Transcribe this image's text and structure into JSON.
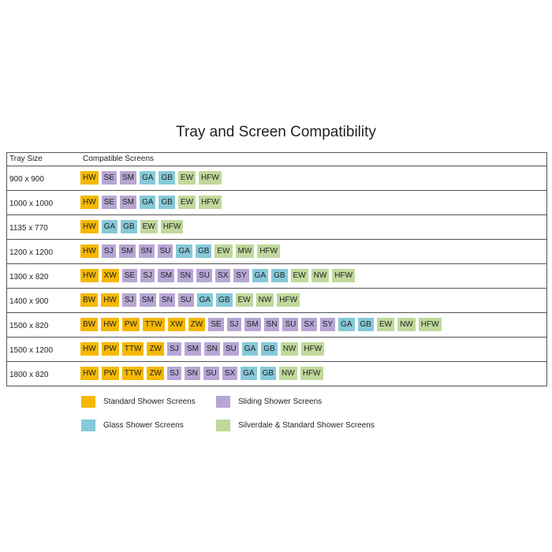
{
  "title": "Tray and Screen Compatibility",
  "headers": {
    "tray_size": "Tray Size",
    "compatible": "Compatible Screens"
  },
  "colors": {
    "standard": "#f5b800",
    "sliding": "#b6a6d4",
    "glass": "#86c9d9",
    "silverdale": "#bfd99b"
  },
  "codes": {
    "HW": "standard",
    "XW": "standard",
    "BW": "standard",
    "PW": "standard",
    "TTW": "standard",
    "ZW": "standard",
    "SE": "sliding",
    "SM": "sliding",
    "SJ": "sliding",
    "SN": "sliding",
    "SU": "sliding",
    "SX": "sliding",
    "SY": "sliding",
    "GA": "glass",
    "GB": "glass",
    "EW": "silverdale",
    "HFW": "silverdale",
    "MW": "silverdale",
    "NW": "silverdale"
  },
  "rows": [
    {
      "size": "900 x 900",
      "screens": [
        "HW",
        "SE",
        "SM",
        "GA",
        "GB",
        "EW",
        "HFW"
      ]
    },
    {
      "size": "1000 x 1000",
      "screens": [
        "HW",
        "SE",
        "SM",
        "GA",
        "GB",
        "EW",
        "HFW"
      ]
    },
    {
      "size": "1135 x 770",
      "screens": [
        "HW",
        "GA",
        "GB",
        "EW",
        "HFW"
      ]
    },
    {
      "size": "1200 x 1200",
      "screens": [
        "HW",
        "SJ",
        "SM",
        "SN",
        "SU",
        "GA",
        "GB",
        "EW",
        "MW",
        "HFW"
      ]
    },
    {
      "size": "1300 x 820",
      "screens": [
        "HW",
        "XW",
        "SE",
        "SJ",
        "SM",
        "SN",
        "SU",
        "SX",
        "SY",
        "GA",
        "GB",
        "EW",
        "NW",
        "HFW"
      ]
    },
    {
      "size": "1400 x 900",
      "screens": [
        "BW",
        "HW",
        "SJ",
        "SM",
        "SN",
        "SU",
        "GA",
        "GB",
        "EW",
        "NW",
        "HFW"
      ]
    },
    {
      "size": "1500 x 820",
      "screens": [
        "BW",
        "HW",
        "PW",
        "TTW",
        "XW",
        "ZW",
        "SE",
        "SJ",
        "SM",
        "SN",
        "SU",
        "SX",
        "SY",
        "GA",
        "GB",
        "EW",
        "NW",
        "HFW"
      ]
    },
    {
      "size": "1500 x 1200",
      "screens": [
        "HW",
        "PW",
        "TTW",
        "ZW",
        "SJ",
        "SM",
        "SN",
        "SU",
        "GA",
        "GB",
        "NW",
        "HFW"
      ]
    },
    {
      "size": "1800 x 820",
      "screens": [
        "HW",
        "PW",
        "TTW",
        "ZW",
        "SJ",
        "SN",
        "SU",
        "SX",
        "GA",
        "GB",
        "NW",
        "HFW"
      ]
    }
  ],
  "legend": [
    {
      "key": "standard",
      "label": "Standard Shower Screens"
    },
    {
      "key": "sliding",
      "label": "Sliding Shower Screens"
    },
    {
      "key": "glass",
      "label": "Glass Shower Screens"
    },
    {
      "key": "silverdale",
      "label": "Silverdale & Standard Shower Screens"
    }
  ]
}
